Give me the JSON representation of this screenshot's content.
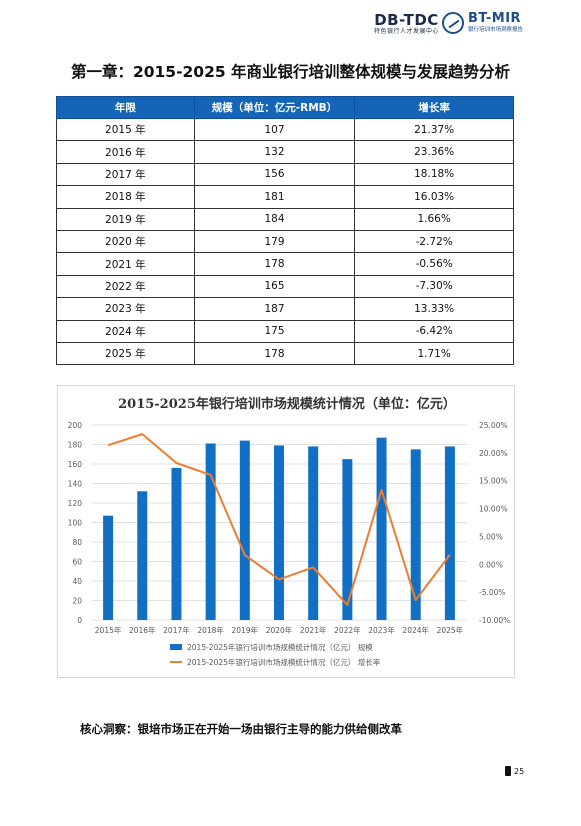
{
  "header": {
    "logo_left_text": "DB-TDC",
    "logo_left_sub": "特色银行人才发展中心",
    "logo_right_text": "BT-MIR",
    "logo_right_sub": "银行培训市场洞察报告"
  },
  "chapter_title": "第一章：2015-2025 年商业银行培训整体规模与发展趋势分析",
  "table": {
    "headers": [
      "年限",
      "规模（单位：亿元-RMB）",
      "增长率"
    ],
    "rows": [
      [
        "2015 年",
        "107",
        "21.37%"
      ],
      [
        "2016 年",
        "132",
        "23.36%"
      ],
      [
        "2017 年",
        "156",
        "18.18%"
      ],
      [
        "2018 年",
        "181",
        "16.03%"
      ],
      [
        "2019 年",
        "184",
        "1.66%"
      ],
      [
        "2020 年",
        "179",
        "-2.72%"
      ],
      [
        "2021 年",
        "178",
        "-0.56%"
      ],
      [
        "2022 年",
        "165",
        "-7.30%"
      ],
      [
        "2023 年",
        "187",
        "13.33%"
      ],
      [
        "2024 年",
        "175",
        "-6.42%"
      ],
      [
        "2025 年",
        "178",
        "1.71%"
      ]
    ]
  },
  "chart_data": {
    "type": "bar",
    "title": "2015-2025年银行培训市场规模统计情况（单位：亿元）",
    "categories": [
      "2015年",
      "2016年",
      "2017年",
      "2018年",
      "2019年",
      "2020年",
      "2021年",
      "2022年",
      "2023年",
      "2024年",
      "2025年"
    ],
    "series": [
      {
        "name": "2015-2025年银行培训市场规模统计情况（亿元） 规模",
        "type": "bar",
        "axis": "left",
        "values": [
          107,
          132,
          156,
          181,
          184,
          179,
          178,
          165,
          187,
          175,
          178
        ]
      },
      {
        "name": "2015-2025年银行培训市场规模统计情况（亿元） 增长率",
        "type": "line",
        "axis": "right",
        "values": [
          21.37,
          23.36,
          18.18,
          16.03,
          1.66,
          -2.72,
          -0.56,
          -7.3,
          13.33,
          -6.42,
          1.71
        ]
      }
    ],
    "y_left": {
      "min": 0,
      "max": 200,
      "step": 20,
      "ticks": [
        "0",
        "20",
        "40",
        "60",
        "80",
        "100",
        "120",
        "140",
        "160",
        "180",
        "200"
      ]
    },
    "y_right": {
      "min": -10,
      "max": 25,
      "step": 5,
      "ticks": [
        "-10.00%",
        "-5.00%",
        "0.00%",
        "5.00%",
        "10.00%",
        "15.00%",
        "20.00%",
        "25.00%"
      ]
    },
    "grid": true,
    "legend_position": "bottom",
    "colors": {
      "bar": "#1270c4",
      "line": "#ed7d31"
    }
  },
  "insight": "核心洞察：银培市场正在开始一场由银行主导的能力供给侧改革",
  "page_number": "25"
}
